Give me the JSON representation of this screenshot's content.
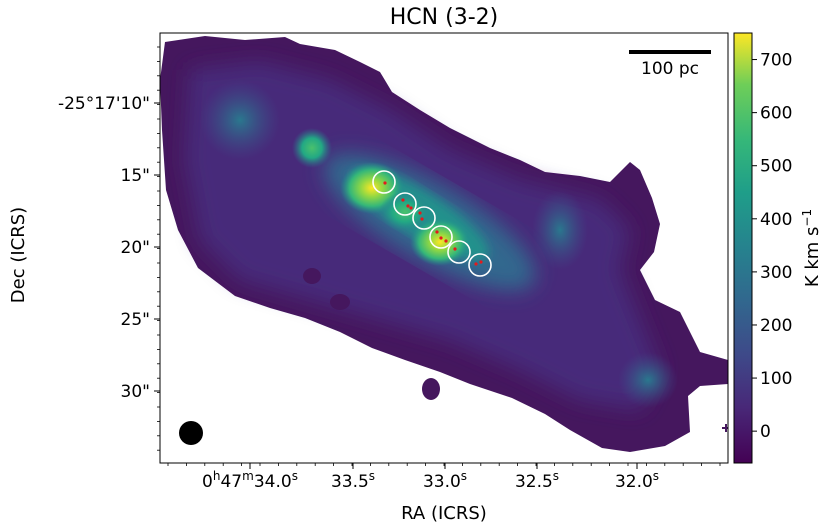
{
  "chart_data": {
    "type": "heatmap",
    "title": "HCN (3-2)",
    "xlabel": "RA (ICRS)",
    "ylabel": "Dec (ICRS)",
    "x_ticks": [
      {
        "h": "0",
        "m": "47",
        "s": "34.0"
      },
      {
        "h": "",
        "m": "",
        "s": "33.5"
      },
      {
        "h": "",
        "m": "",
        "s": "33.0"
      },
      {
        "h": "",
        "m": "",
        "s": "32.5"
      },
      {
        "h": "",
        "m": "",
        "s": "32.0"
      }
    ],
    "y_ticks": [
      "-25°17'10\"",
      "15\"",
      "20\"",
      "25\"",
      "30\""
    ],
    "colorbar": {
      "label_main": "K km s",
      "label_sup": "−1",
      "min": -60,
      "max": 750,
      "ticks": [
        "0",
        "100",
        "200",
        "300",
        "400",
        "500",
        "600",
        "700"
      ],
      "tick_values": [
        0,
        100,
        200,
        300,
        400,
        500,
        600,
        700
      ]
    },
    "scalebar_label": "100 pc",
    "colormap": "viridis",
    "colors": {
      "low": "#440154",
      "mid": "#21918c",
      "high": "#fde725",
      "source_markers": "#e41a1c",
      "apertures": "#ffffff",
      "beam": "#000000"
    },
    "apertures_count": 6
  }
}
